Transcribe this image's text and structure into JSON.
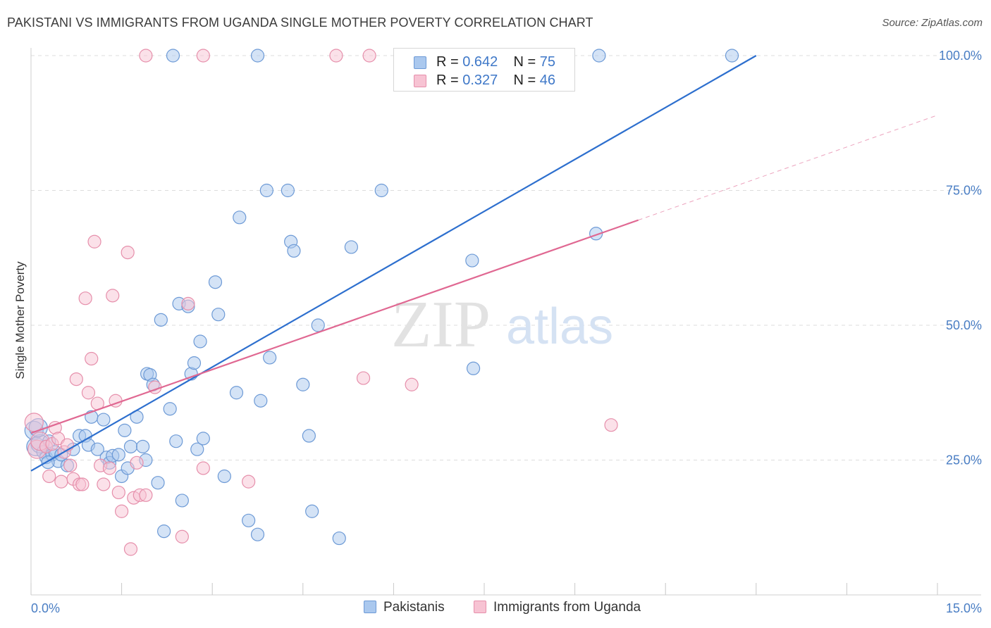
{
  "header": {
    "title": "PAKISTANI VS IMMIGRANTS FROM UGANDA SINGLE MOTHER POVERTY CORRELATION CHART",
    "source": "Source: ZipAtlas.com"
  },
  "watermark": {
    "zip": "ZIP",
    "atlas": "atlas"
  },
  "legend": {
    "rows": [
      {
        "r_label": "R =",
        "r_value": "0.642",
        "n_label": "N =",
        "n_value": "75"
      },
      {
        "r_label": "R =",
        "r_value": "0.327",
        "n_label": "N =",
        "n_value": "46"
      }
    ]
  },
  "bottom_legend": [
    "Pakistanis",
    "Immigrants from Uganda"
  ],
  "colors": {
    "blue_fill": "#aac8ee",
    "blue_stroke": "#6d9ad6",
    "blue_line": "#2d6fce",
    "pink_fill": "#f7c3d3",
    "pink_stroke": "#e68fab",
    "pink_line": "#e06892",
    "grid": "#dddddd",
    "axis_text": "#4a7ec4"
  },
  "chart_data": {
    "type": "scatter",
    "title": "PAKISTANI VS IMMIGRANTS FROM UGANDA SINGLE MOTHER POVERTY CORRELATION CHART",
    "xlabel": "",
    "ylabel": "Single Mother Poverty",
    "xlim": [
      0,
      15
    ],
    "ylim": [
      0,
      102
    ],
    "x_tick_labels": [
      "0.0%",
      "15.0%"
    ],
    "y_tick_labels": [
      "25.0%",
      "50.0%",
      "75.0%",
      "100.0%"
    ],
    "y_ticks": [
      25,
      50,
      75,
      100
    ],
    "grid": true,
    "legend_placement": "top-center",
    "series": [
      {
        "name": "Pakistanis",
        "r": 0.642,
        "n": 75,
        "trend": {
          "x": [
            0.0,
            12.0
          ],
          "y": [
            23.0,
            100.0
          ],
          "dashed_to_x": 12.0
        },
        "points": [
          [
            0.05,
            30.5
          ],
          [
            0.08,
            27.5
          ],
          [
            0.15,
            28.0
          ],
          [
            0.2,
            26.5
          ],
          [
            0.25,
            25.5
          ],
          [
            0.3,
            28.5
          ],
          [
            0.35,
            26.0
          ],
          [
            0.4,
            26.5
          ],
          [
            0.45,
            24.8
          ],
          [
            0.5,
            26.0
          ],
          [
            0.6,
            24.0
          ],
          [
            0.7,
            27.0
          ],
          [
            0.8,
            29.5
          ],
          [
            0.9,
            29.5
          ],
          [
            0.95,
            27.8
          ],
          [
            1.0,
            33.0
          ],
          [
            1.1,
            27.0
          ],
          [
            1.2,
            32.5
          ],
          [
            1.25,
            25.5
          ],
          [
            1.3,
            24.5
          ],
          [
            1.35,
            25.8
          ],
          [
            1.45,
            26.0
          ],
          [
            1.5,
            22.0
          ],
          [
            1.55,
            30.5
          ],
          [
            1.6,
            23.5
          ],
          [
            1.65,
            27.5
          ],
          [
            1.75,
            33.0
          ],
          [
            1.85,
            27.5
          ],
          [
            1.9,
            25.0
          ],
          [
            1.92,
            41.0
          ],
          [
            1.97,
            40.8
          ],
          [
            2.02,
            39.0
          ],
          [
            2.1,
            20.8
          ],
          [
            2.15,
            51.0
          ],
          [
            2.2,
            11.8
          ],
          [
            2.3,
            34.5
          ],
          [
            2.4,
            28.5
          ],
          [
            2.45,
            54.0
          ],
          [
            2.5,
            17.5
          ],
          [
            2.6,
            53.5
          ],
          [
            2.65,
            41.0
          ],
          [
            2.7,
            43.0
          ],
          [
            2.75,
            27.0
          ],
          [
            2.8,
            47.0
          ],
          [
            2.85,
            29.0
          ],
          [
            3.05,
            58.0
          ],
          [
            3.1,
            52.0
          ],
          [
            3.2,
            22.0
          ],
          [
            3.4,
            37.5
          ],
          [
            3.45,
            70.0
          ],
          [
            3.6,
            13.8
          ],
          [
            3.75,
            11.2
          ],
          [
            3.8,
            36.0
          ],
          [
            3.9,
            75.0
          ],
          [
            3.95,
            44.0
          ],
          [
            4.25,
            75.0
          ],
          [
            4.3,
            65.5
          ],
          [
            4.35,
            63.8
          ],
          [
            4.5,
            39.0
          ],
          [
            4.6,
            29.5
          ],
          [
            4.65,
            15.5
          ],
          [
            4.75,
            50.0
          ],
          [
            5.1,
            10.5
          ],
          [
            5.3,
            64.5
          ],
          [
            5.8,
            75.0
          ],
          [
            7.3,
            62.0
          ],
          [
            7.32,
            42.0
          ],
          [
            9.35,
            67.0
          ],
          [
            2.35,
            100.0
          ],
          [
            3.75,
            100.0
          ],
          [
            6.15,
            100.0
          ],
          [
            9.4,
            100.0
          ],
          [
            11.6,
            100.0
          ],
          [
            0.12,
            31.0
          ],
          [
            0.28,
            24.6
          ]
        ]
      },
      {
        "name": "Immigrants from Uganda",
        "r": 0.327,
        "n": 46,
        "trend": {
          "x": [
            0.0,
            10.05
          ],
          "y": [
            30.0,
            69.5
          ],
          "dashed_to_x": 15.0
        },
        "points": [
          [
            0.05,
            32.0
          ],
          [
            0.1,
            27.0
          ],
          [
            0.15,
            28.5
          ],
          [
            0.25,
            27.5
          ],
          [
            0.3,
            22.0
          ],
          [
            0.35,
            28.0
          ],
          [
            0.4,
            31.0
          ],
          [
            0.45,
            29.0
          ],
          [
            0.5,
            21.0
          ],
          [
            0.55,
            26.5
          ],
          [
            0.6,
            27.8
          ],
          [
            0.65,
            24.0
          ],
          [
            0.7,
            21.5
          ],
          [
            0.75,
            40.0
          ],
          [
            0.8,
            20.5
          ],
          [
            0.85,
            20.5
          ],
          [
            0.9,
            55.0
          ],
          [
            0.95,
            37.5
          ],
          [
            1.0,
            43.8
          ],
          [
            1.05,
            65.5
          ],
          [
            1.1,
            35.5
          ],
          [
            1.15,
            24.0
          ],
          [
            1.2,
            20.5
          ],
          [
            1.3,
            23.5
          ],
          [
            1.35,
            55.5
          ],
          [
            1.4,
            36.0
          ],
          [
            1.45,
            19.0
          ],
          [
            1.5,
            15.5
          ],
          [
            1.6,
            63.5
          ],
          [
            1.65,
            8.5
          ],
          [
            1.7,
            18.0
          ],
          [
            1.75,
            24.5
          ],
          [
            1.8,
            18.5
          ],
          [
            1.9,
            18.5
          ],
          [
            2.05,
            38.5
          ],
          [
            2.5,
            10.8
          ],
          [
            2.6,
            54.0
          ],
          [
            2.85,
            23.5
          ],
          [
            3.6,
            21.0
          ],
          [
            5.5,
            40.2
          ],
          [
            6.3,
            39.0
          ],
          [
            9.6,
            31.5
          ],
          [
            1.9,
            100.0
          ],
          [
            2.85,
            100.0
          ],
          [
            5.05,
            100.0
          ],
          [
            5.6,
            100.0
          ]
        ]
      }
    ]
  }
}
